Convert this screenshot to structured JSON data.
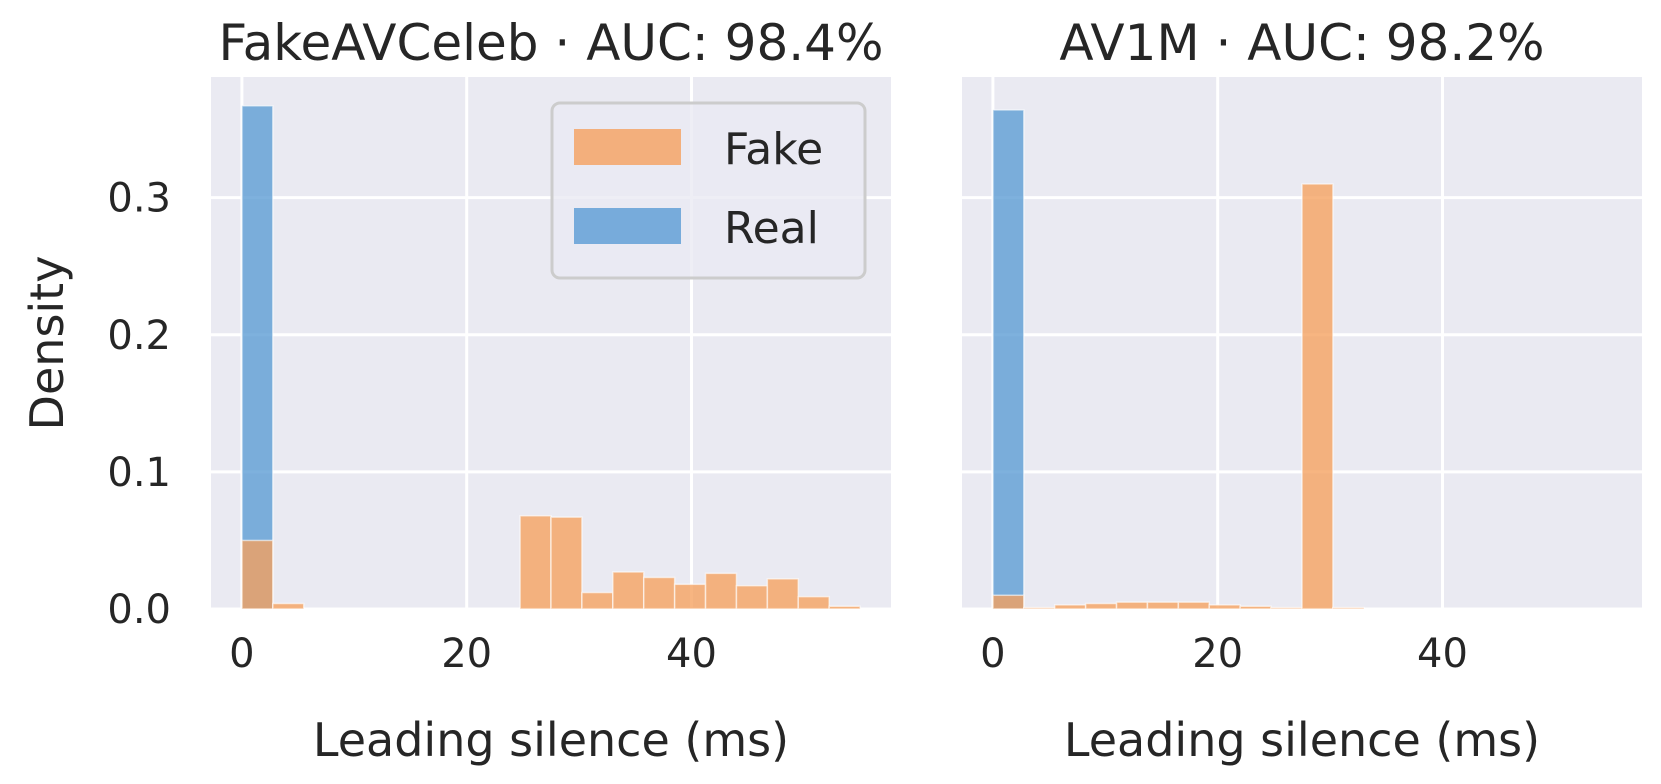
{
  "colors": {
    "panel_bg": "#EAEAF2",
    "grid": "#FFFFFF",
    "fake": "#F5A05E",
    "real": "#5A9BD4",
    "text": "#262626"
  },
  "legend": {
    "placement": "upper-right of first panel",
    "entries": [
      {
        "label": "Fake",
        "color_key": "fake"
      },
      {
        "label": "Real",
        "color_key": "real"
      }
    ]
  },
  "shared": {
    "ylabel": "Density",
    "yticks": [
      0.0,
      0.1,
      0.2,
      0.3
    ],
    "ytick_labels": [
      "0.0",
      "0.1",
      "0.2",
      "0.3"
    ],
    "ylim": [
      0,
      0.388
    ],
    "xlim": [
      -2.75,
      57.75
    ],
    "xticks": [
      0,
      20,
      40
    ],
    "xtick_labels": [
      "0",
      "20",
      "40"
    ],
    "bin_width": 2.75
  },
  "chart_data": [
    {
      "type": "bar",
      "title": "FakeAVCeleb · AUC: 98.4%",
      "xlabel": "Leading silence (ms)",
      "ylabel": "Density",
      "grid": true,
      "series": [
        {
          "name": "Real",
          "bins": [
            {
              "x0": 0,
              "x1": 2.75,
              "density": 0.367
            }
          ]
        },
        {
          "name": "Fake",
          "bins": [
            {
              "x0": 0,
              "x1": 2.75,
              "density": 0.05
            },
            {
              "x0": 2.75,
              "x1": 5.5,
              "density": 0.004
            },
            {
              "x0": 24.75,
              "x1": 27.5,
              "density": 0.068
            },
            {
              "x0": 27.5,
              "x1": 30.25,
              "density": 0.067
            },
            {
              "x0": 30.25,
              "x1": 33.0,
              "density": 0.012
            },
            {
              "x0": 33.0,
              "x1": 35.75,
              "density": 0.027
            },
            {
              "x0": 35.75,
              "x1": 38.5,
              "density": 0.023
            },
            {
              "x0": 38.5,
              "x1": 41.25,
              "density": 0.018
            },
            {
              "x0": 41.25,
              "x1": 44.0,
              "density": 0.026
            },
            {
              "x0": 44.0,
              "x1": 46.75,
              "density": 0.017
            },
            {
              "x0": 46.75,
              "x1": 49.5,
              "density": 0.022
            },
            {
              "x0": 49.5,
              "x1": 52.25,
              "density": 0.009
            },
            {
              "x0": 52.25,
              "x1": 55.0,
              "density": 0.002
            }
          ]
        }
      ]
    },
    {
      "type": "bar",
      "title": "AV1M · AUC: 98.2%",
      "xlabel": "Leading silence (ms)",
      "grid": true,
      "series": [
        {
          "name": "Real",
          "bins": [
            {
              "x0": 0,
              "x1": 2.75,
              "density": 0.364
            }
          ]
        },
        {
          "name": "Fake",
          "bins": [
            {
              "x0": 0,
              "x1": 2.75,
              "density": 0.01
            },
            {
              "x0": 2.75,
              "x1": 5.5,
              "density": 0.001
            },
            {
              "x0": 5.5,
              "x1": 8.25,
              "density": 0.003
            },
            {
              "x0": 8.25,
              "x1": 11.0,
              "density": 0.004
            },
            {
              "x0": 11.0,
              "x1": 13.75,
              "density": 0.005
            },
            {
              "x0": 13.75,
              "x1": 16.5,
              "density": 0.005
            },
            {
              "x0": 16.5,
              "x1": 19.25,
              "density": 0.005
            },
            {
              "x0": 19.25,
              "x1": 22.0,
              "density": 0.003
            },
            {
              "x0": 22.0,
              "x1": 24.75,
              "density": 0.002
            },
            {
              "x0": 24.75,
              "x1": 27.5,
              "density": 0.001
            },
            {
              "x0": 27.5,
              "x1": 30.25,
              "density": 0.31
            },
            {
              "x0": 30.25,
              "x1": 33.0,
              "density": 0.001
            }
          ]
        }
      ]
    }
  ]
}
